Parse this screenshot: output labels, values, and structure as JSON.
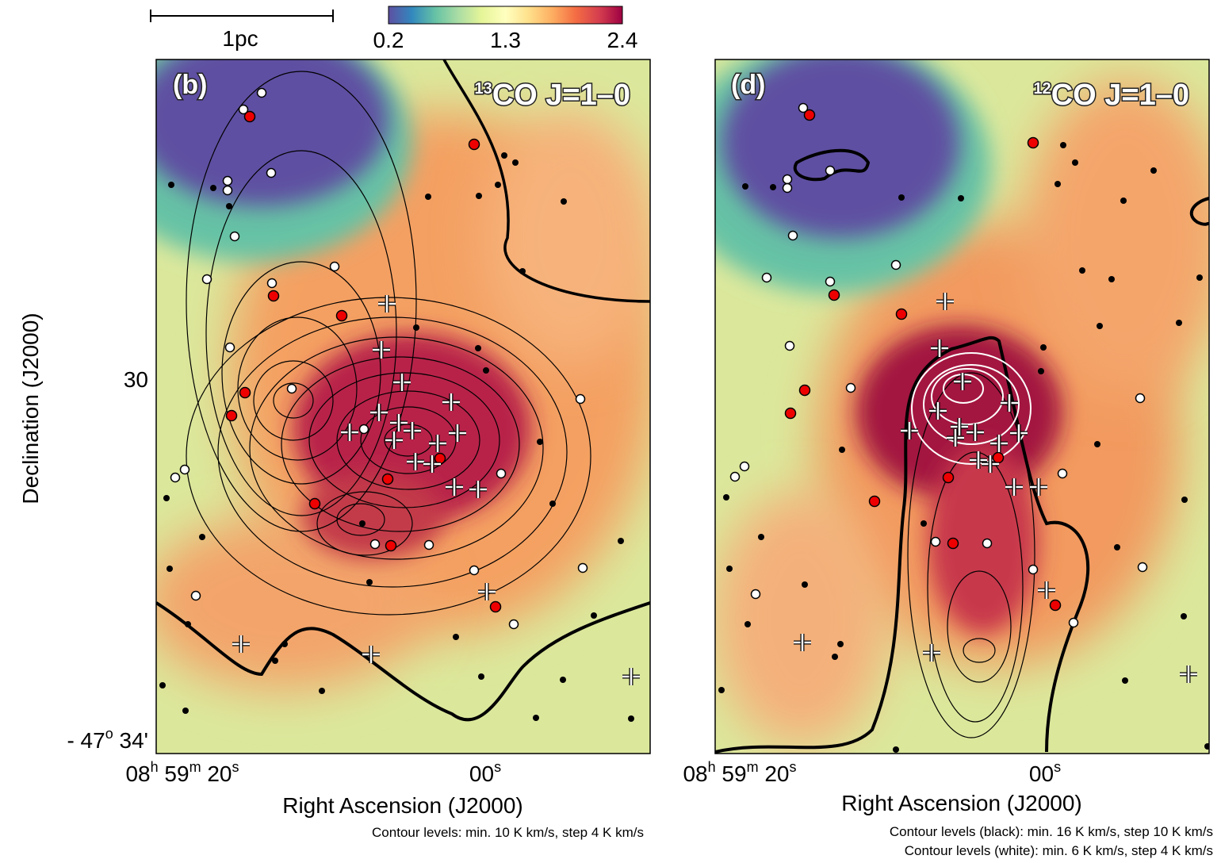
{
  "scale_bar": {
    "label": "1pc"
  },
  "colorbar": {
    "ticks": [
      0.2,
      1.3,
      2.4
    ]
  },
  "panels": [
    {
      "label": "(b)",
      "title": [
        "13",
        "CO J=1–0"
      ],
      "y_label": "Declination (J2000)",
      "y_ticks": [
        [
          "30"
        ],
        [
          "- 47",
          "o",
          " 34'"
        ]
      ],
      "x_ticks": [
        [
          "08",
          "h",
          " 59",
          "m",
          " 20",
          "s"
        ],
        [
          "00",
          "s"
        ]
      ],
      "x_label": "Right Ascension (J2000)",
      "notes": [
        "Contour levels: min. 10 K km/s,  step 4 K km/s"
      ]
    },
    {
      "label": "(d)",
      "title": [
        "12",
        "CO J=1–0"
      ],
      "x_ticks": [
        [
          "08",
          "h",
          " 59",
          "m",
          " 20",
          "s"
        ],
        [
          "00",
          "s"
        ]
      ],
      "x_label": "Right Ascension (J2000)",
      "notes": [
        "Contour levels (black): min. 16 K km/s,  step 10 K km/s",
        "Contour levels (white): min.   6 K km/s,  step   4 K km/s"
      ]
    }
  ]
}
